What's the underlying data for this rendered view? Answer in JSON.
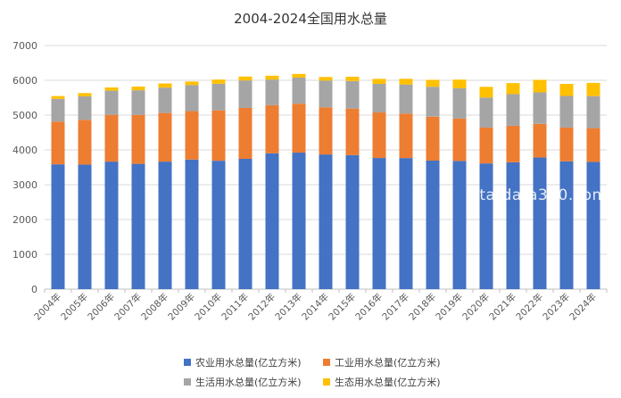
{
  "chart_data": {
    "type": "bar",
    "stacked": true,
    "title": "2004-2024全国用水总量",
    "xlabel": "",
    "ylabel": "",
    "ylim": [
      0,
      7000
    ],
    "yticks": [
      0,
      1000,
      2000,
      3000,
      4000,
      5000,
      6000,
      7000
    ],
    "grid": true,
    "legend_position": "bottom",
    "categories": [
      "2004年",
      "2005年",
      "2006年",
      "2007年",
      "2008年",
      "2009年",
      "2010年",
      "2011年",
      "2012年",
      "2013年",
      "2014年",
      "2015年",
      "2016年",
      "2017年",
      "2018年",
      "2019年",
      "2020年",
      "2021年",
      "2022年",
      "2023年",
      "2024年"
    ],
    "series": [
      {
        "name": "农业用水总量(亿立方米)",
        "color": "#4472C4",
        "values": [
          3586,
          3580,
          3664,
          3600,
          3664,
          3723,
          3689,
          3744,
          3903,
          3922,
          3869,
          3852,
          3768,
          3766,
          3693,
          3682,
          3612,
          3644,
          3781,
          3672,
          3656
        ]
      },
      {
        "name": "工业用水总量(亿立方米)",
        "color": "#ED7D31",
        "values": [
          1229,
          1285,
          1344,
          1404,
          1397,
          1391,
          1447,
          1462,
          1381,
          1406,
          1356,
          1335,
          1308,
          1277,
          1262,
          1218,
          1030,
          1050,
          968,
          970,
          970
        ]
      },
      {
        "name": "生活用水总量(亿立方米)",
        "color": "#A5A5A5",
        "values": [
          651,
          675,
          694,
          710,
          729,
          748,
          766,
          790,
          739,
          750,
          767,
          793,
          822,
          838,
          860,
          872,
          863,
          909,
          905,
          909,
          920
        ]
      },
      {
        "name": "生态用水总量(亿立方米)",
        "color": "#FFC000",
        "values": [
          82,
          93,
          93,
          105,
          120,
          103,
          120,
          112,
          108,
          105,
          103,
          123,
          143,
          162,
          200,
          249,
          307,
          317,
          360,
          346,
          380
        ]
      }
    ]
  },
  "watermark": "stardata360.com"
}
